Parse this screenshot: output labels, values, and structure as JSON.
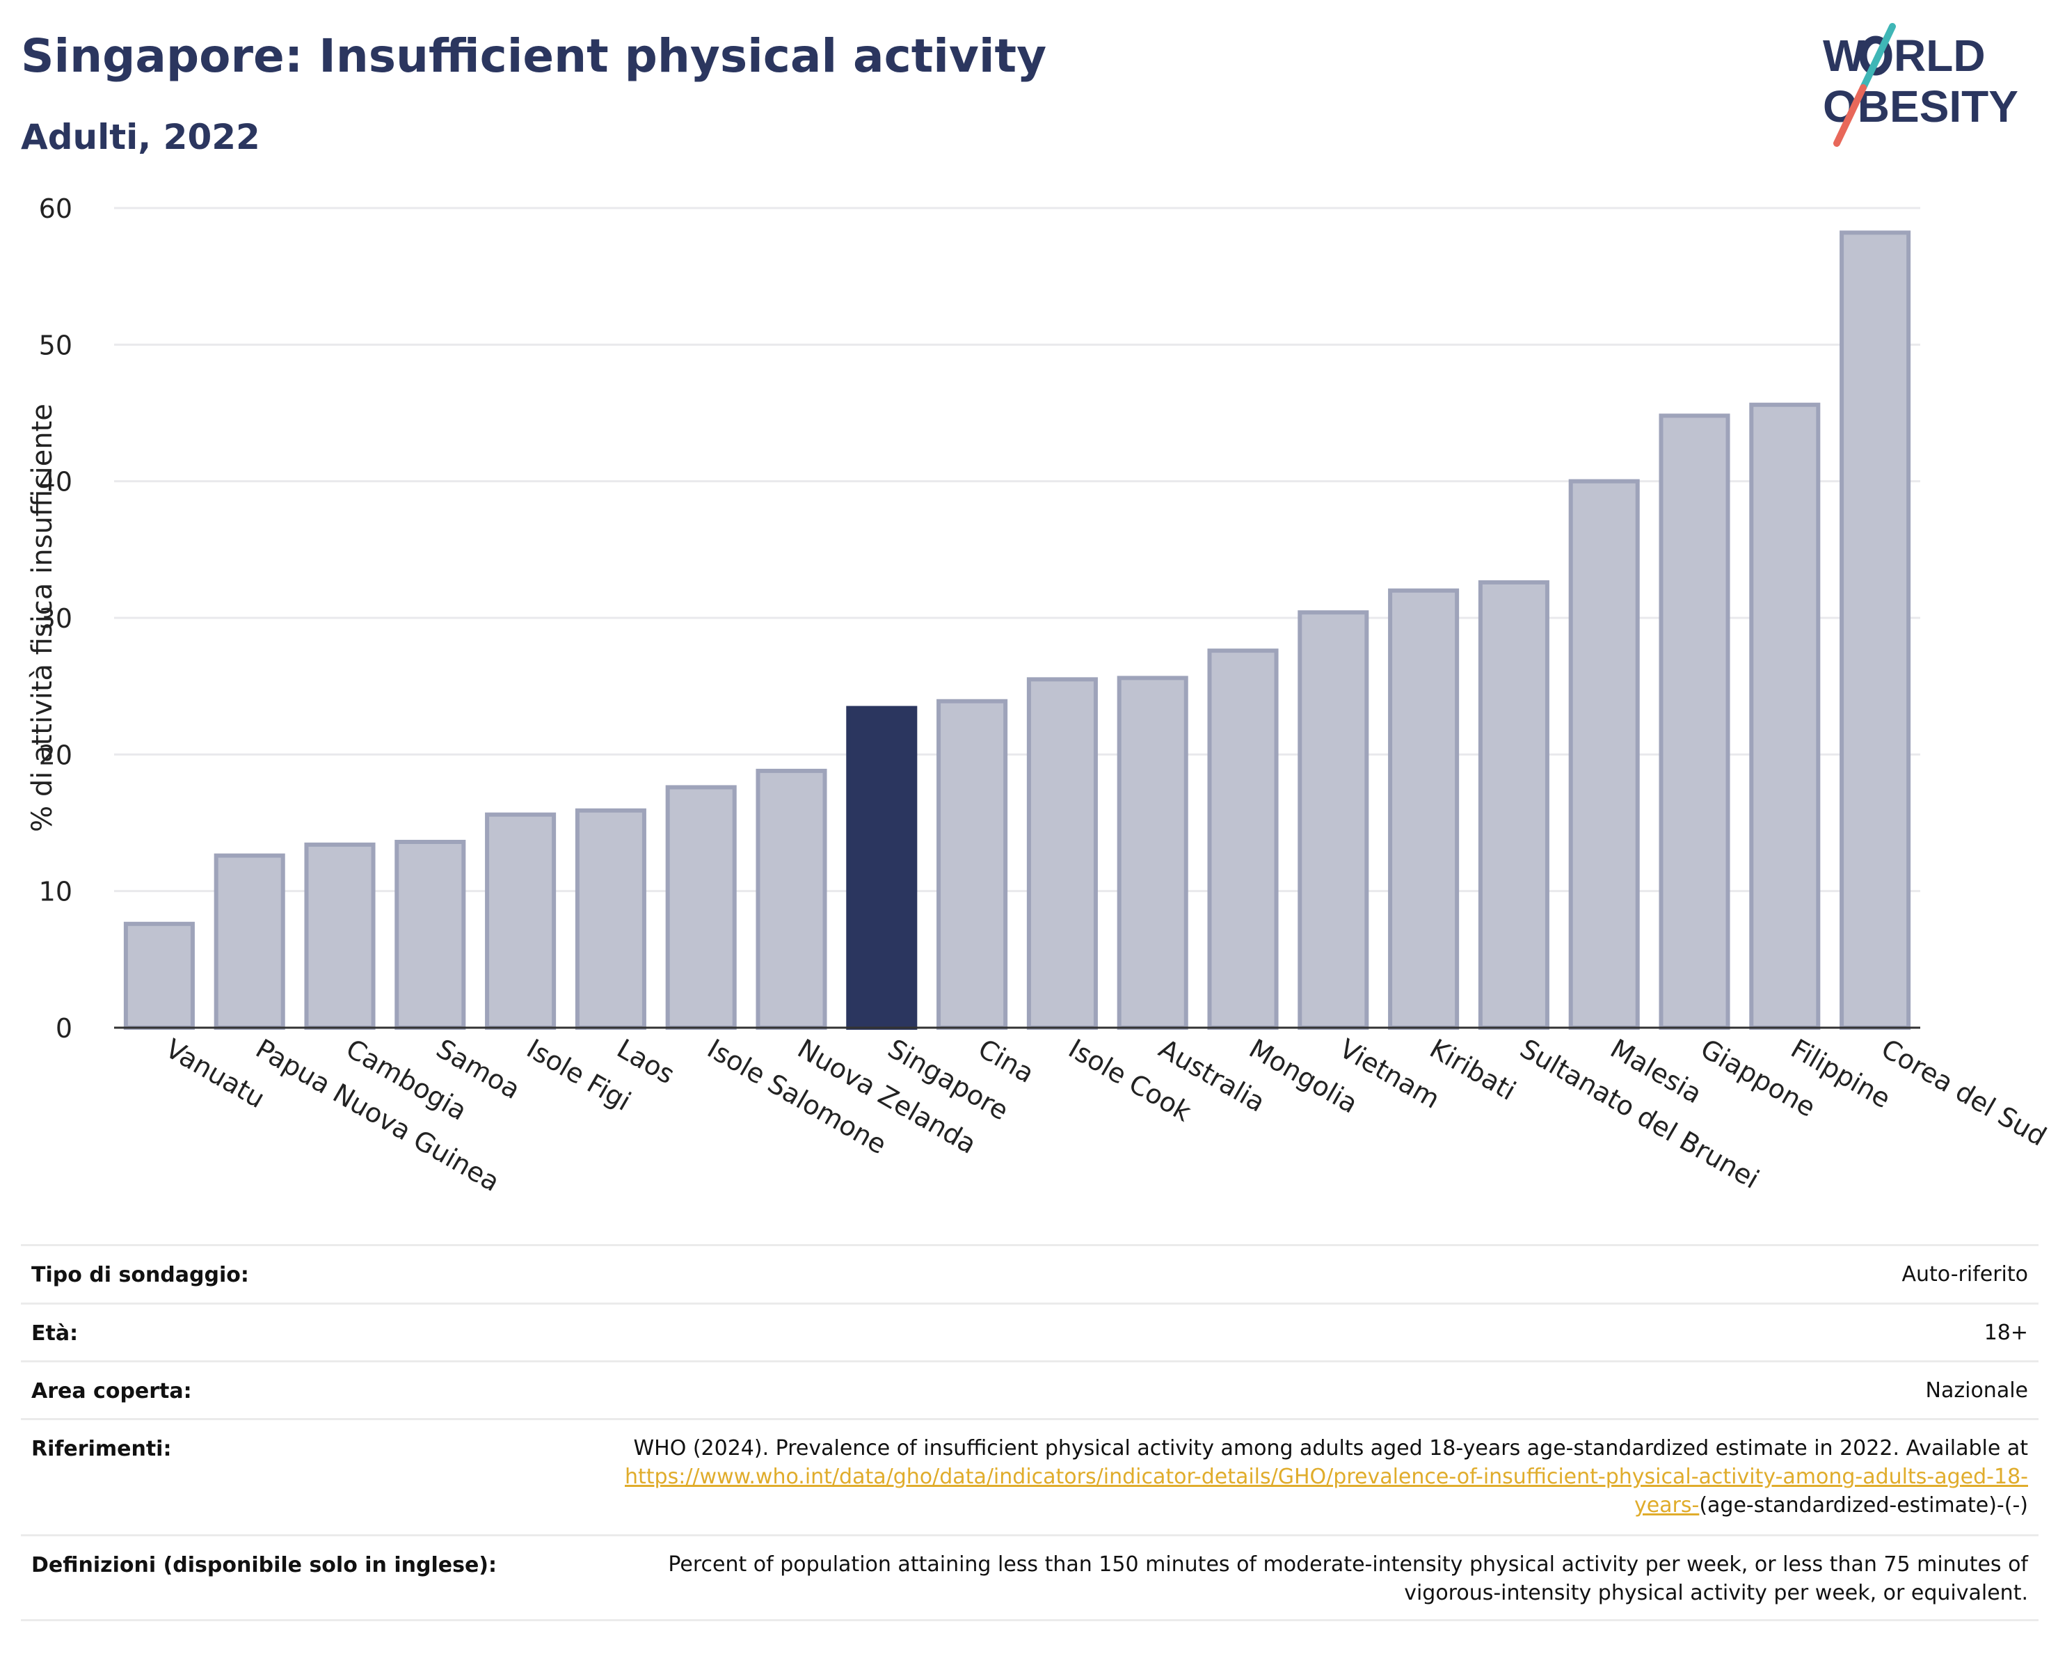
{
  "header": {
    "title": "Singapore: Insufficient physical activity",
    "subtitle": "Adulti, 2022"
  },
  "logo": {
    "line1": "W",
    "line1b": "RLD",
    "line2": "OBESITY",
    "accent_teal": "#3fb6b6",
    "accent_coral": "#e8685a"
  },
  "colors": {
    "bar": "#bfc2d0",
    "bar_stroke": "#9ea3ba",
    "highlight": "#2b365f",
    "grid": "#e9e9ec",
    "axis": "#333333"
  },
  "chart_data": {
    "type": "bar",
    "title": "Singapore: Insufficient physical activity",
    "subtitle": "Adulti, 2022",
    "ylabel": "% di attività fisica insufficiente",
    "xlabel": "",
    "ylim": [
      0,
      60
    ],
    "yticks": [
      0,
      10,
      20,
      30,
      40,
      50,
      60
    ],
    "grid": true,
    "highlight": "Singapore",
    "categories": [
      "Vanuatu",
      "Papua Nuova Guinea",
      "Cambogia",
      "Samoa",
      "Isole Figi",
      "Laos",
      "Isole Salomone",
      "Nuova Zelanda",
      "Singapore",
      "Cina",
      "Isole Cook",
      "Australia",
      "Mongolia",
      "Vietnam",
      "Kiribati",
      "Sultanato del Brunei",
      "Malesia",
      "Giappone",
      "Filippine",
      "Corea del Sud"
    ],
    "values": [
      7.6,
      12.6,
      13.4,
      13.6,
      15.6,
      15.9,
      17.6,
      18.8,
      23.4,
      23.9,
      25.5,
      25.6,
      27.6,
      30.4,
      32.0,
      32.6,
      40.0,
      44.8,
      45.6,
      58.2
    ]
  },
  "metadata": [
    {
      "label": "Tipo di sondaggio:",
      "value": "Auto-riferito"
    },
    {
      "label": "Età:",
      "value": "18+"
    },
    {
      "label": "Area coperta:",
      "value": "Nazionale"
    },
    {
      "label": "Riferimenti:",
      "value": "WHO (2024). Prevalence of insufficient physical activity among adults aged 18-years age-standardized estimate in 2022. Available at",
      "link": "https://www.who.int/data/gho/data/indicators/indicator-details/GHO/prevalence-of-insufficient-physical-activity-among-adults-aged-18-years-",
      "suffix": "(age-standardized-estimate)-(-)"
    },
    {
      "label": "Definizioni (disponibile solo in inglese):",
      "value": "Percent of population attaining less than 150 minutes of moderate-intensity physical activity per week, or less than 75 minutes of vigorous-intensity physical activity per week, or equivalent."
    }
  ]
}
